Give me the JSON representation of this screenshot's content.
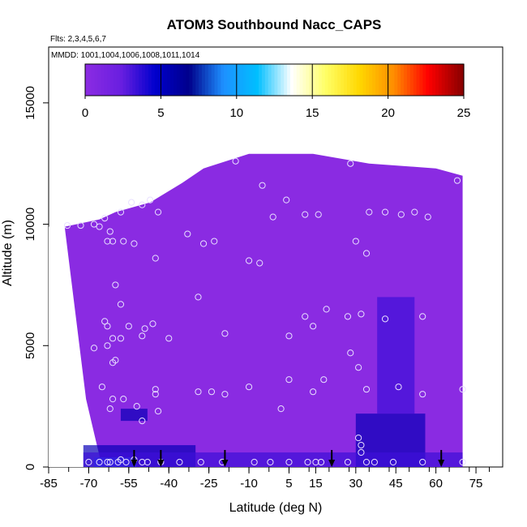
{
  "chart_data": {
    "type": "heatmap",
    "title": "ATOM3 Southbound Nacc_CAPS",
    "flights_note": "Flts: 2,3,4,5,6,7",
    "dates_note": "MMDD: 1001,1004,1006,1008,1011,1014",
    "xlabel": "Latitude (deg N)",
    "ylabel": "Altitude (m)",
    "xlim": [
      -85,
      85
    ],
    "ylim": [
      0,
      17300
    ],
    "x_ticks": [
      -85,
      -70,
      -55,
      -40,
      -25,
      -10,
      5,
      15,
      30,
      45,
      60,
      75
    ],
    "y_ticks": [
      0,
      5000,
      10000,
      15000
    ],
    "colorbar": {
      "range": [
        0,
        25
      ],
      "ticks": [
        0,
        5,
        10,
        15,
        20,
        25
      ],
      "colors": [
        "#8a2be2",
        "#6a1fe0",
        "#0000cd",
        "#00008b",
        "#1e90ff",
        "#00bfff",
        "#ffffff",
        "#ffff66",
        "#ffd700",
        "#ff8c00",
        "#ff0000",
        "#8b0000"
      ]
    },
    "field_colors": {
      "background": "#8a2be2",
      "low": "#7b27e6",
      "mid": "#3d10d8",
      "high": "#0a00b8",
      "peak": "#1a4fff"
    },
    "domain_top": [
      [
        -79,
        9900
      ],
      [
        -66,
        10200
      ],
      [
        -60,
        10500
      ],
      [
        -47,
        10900
      ],
      [
        -35,
        11700
      ],
      [
        -27,
        12300
      ],
      [
        -10,
        12900
      ],
      [
        14,
        12900
      ],
      [
        35,
        12500
      ],
      [
        60,
        12300
      ],
      [
        70,
        12000
      ],
      [
        70,
        0
      ],
      [
        -79,
        0
      ]
    ],
    "domain_bottom_left": [
      [
        -79,
        9900
      ],
      [
        -71,
        2800
      ],
      [
        -65,
        0
      ]
    ],
    "high_regions": [
      {
        "x": [
          -72,
          -30
        ],
        "y": [
          0,
          900
        ],
        "level": "high"
      },
      {
        "x": [
          -68,
          -52
        ],
        "y": [
          0,
          400
        ],
        "level": "peak"
      },
      {
        "x": [
          30,
          56
        ],
        "y": [
          0,
          2200
        ],
        "level": "high"
      },
      {
        "x": [
          38,
          52
        ],
        "y": [
          2200,
          7000
        ],
        "level": "mid"
      },
      {
        "x": [
          -58,
          -48
        ],
        "y": [
          1900,
          2400
        ],
        "level": "high"
      },
      {
        "x": [
          -72,
          70
        ],
        "y": [
          0,
          600
        ],
        "level": "mid"
      }
    ],
    "points": [
      [
        -78,
        9950
      ],
      [
        -73,
        9950
      ],
      [
        -68,
        10000
      ],
      [
        -66,
        9900
      ],
      [
        -64,
        10250
      ],
      [
        -62,
        9700
      ],
      [
        -63,
        9300
      ],
      [
        -61,
        9300
      ],
      [
        -58,
        10500
      ],
      [
        -57,
        9300
      ],
      [
        -54,
        10900
      ],
      [
        -50,
        10800
      ],
      [
        -47,
        11000
      ],
      [
        -44,
        10500
      ],
      [
        -45,
        8600
      ],
      [
        -53,
        9200
      ],
      [
        -33,
        9600
      ],
      [
        -27,
        9200
      ],
      [
        -23,
        9300
      ],
      [
        -15,
        12600
      ],
      [
        -5,
        11600
      ],
      [
        4,
        11000
      ],
      [
        -1,
        10300
      ],
      [
        11,
        10400
      ],
      [
        16,
        10400
      ],
      [
        28,
        12500
      ],
      [
        30,
        9300
      ],
      [
        34,
        8800
      ],
      [
        35,
        10500
      ],
      [
        41,
        10500
      ],
      [
        47,
        10400
      ],
      [
        52,
        10500
      ],
      [
        57,
        10300
      ],
      [
        68,
        11800
      ],
      [
        -10,
        8500
      ],
      [
        -6,
        8400
      ],
      [
        -29,
        7000
      ],
      [
        -60,
        7500
      ],
      [
        -58,
        6700
      ],
      [
        -64,
        6000
      ],
      [
        -63,
        5800
      ],
      [
        -61,
        5300
      ],
      [
        -58,
        5300
      ],
      [
        -55,
        5800
      ],
      [
        -50,
        5400
      ],
      [
        -49,
        5700
      ],
      [
        -46,
        5900
      ],
      [
        -40,
        5300
      ],
      [
        -19,
        5500
      ],
      [
        -68,
        4900
      ],
      [
        -63,
        5000
      ],
      [
        -60,
        4400
      ],
      [
        -61,
        4300
      ],
      [
        5,
        5400
      ],
      [
        11,
        6200
      ],
      [
        14,
        5800
      ],
      [
        19,
        6500
      ],
      [
        27,
        6200
      ],
      [
        32,
        6300
      ],
      [
        41,
        6100
      ],
      [
        55,
        6200
      ],
      [
        28,
        4700
      ],
      [
        31,
        4100
      ],
      [
        34,
        3200
      ],
      [
        46,
        3300
      ],
      [
        55,
        3000
      ],
      [
        70,
        3200
      ],
      [
        -65,
        3300
      ],
      [
        -61,
        2800
      ],
      [
        -57,
        2800
      ],
      [
        -52,
        2500
      ],
      [
        -50,
        1900
      ],
      [
        -45,
        3200
      ],
      [
        -45,
        3000
      ],
      [
        -44,
        2300
      ],
      [
        -29,
        3100
      ],
      [
        -24,
        3100
      ],
      [
        -19,
        3000
      ],
      [
        -10,
        3300
      ],
      [
        2,
        2400
      ],
      [
        5,
        3600
      ],
      [
        14,
        3100
      ],
      [
        18,
        3600
      ],
      [
        32,
        900
      ],
      [
        32,
        600
      ],
      [
        31,
        1200
      ],
      [
        -62,
        2400
      ],
      [
        -70,
        200
      ],
      [
        -66,
        200
      ],
      [
        -63,
        200
      ],
      [
        -62,
        200
      ],
      [
        -59,
        200
      ],
      [
        -56,
        200
      ],
      [
        -50,
        200
      ],
      [
        -48,
        200
      ],
      [
        -43,
        200
      ],
      [
        -36,
        200
      ],
      [
        -28,
        200
      ],
      [
        -20,
        200
      ],
      [
        -8,
        200
      ],
      [
        -2,
        200
      ],
      [
        5,
        200
      ],
      [
        12,
        200
      ],
      [
        15,
        200
      ],
      [
        17,
        200
      ],
      [
        27,
        200
      ],
      [
        34,
        200
      ],
      [
        37,
        200
      ],
      [
        44,
        200
      ],
      [
        55,
        200
      ],
      [
        70,
        200
      ],
      [
        -53,
        300
      ],
      [
        -58,
        300
      ]
    ],
    "arrows_x": [
      -53,
      -43,
      -19,
      21,
      62
    ]
  }
}
